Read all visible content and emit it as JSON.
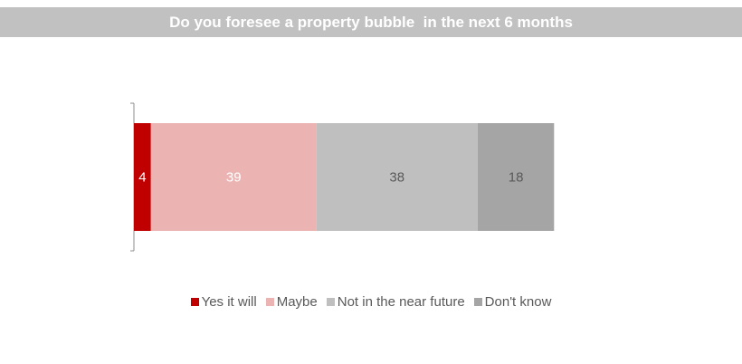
{
  "title": "Do you foresee a property bubble  in the next 6 months",
  "chart_data": {
    "type": "bar",
    "orientation": "horizontal",
    "stacked": true,
    "title": "Do you foresee a property bubble  in the next 6 months",
    "categories": [
      ""
    ],
    "series": [
      {
        "name": "Yes it will",
        "values": [
          4
        ],
        "color": "#c00000",
        "label_color": "#ffffff"
      },
      {
        "name": "Maybe",
        "values": [
          39
        ],
        "color": "#ecb3b3",
        "label_color": "#ffffff"
      },
      {
        "name": "Not in the near future",
        "values": [
          38
        ],
        "color": "#bfbfbf",
        "label_color": "#595959"
      },
      {
        "name": "Don't know",
        "values": [
          18
        ],
        "color": "#a5a5a5",
        "label_color": "#595959"
      }
    ],
    "xlim": [
      0,
      100
    ],
    "grid": false,
    "legend_position": "bottom"
  }
}
